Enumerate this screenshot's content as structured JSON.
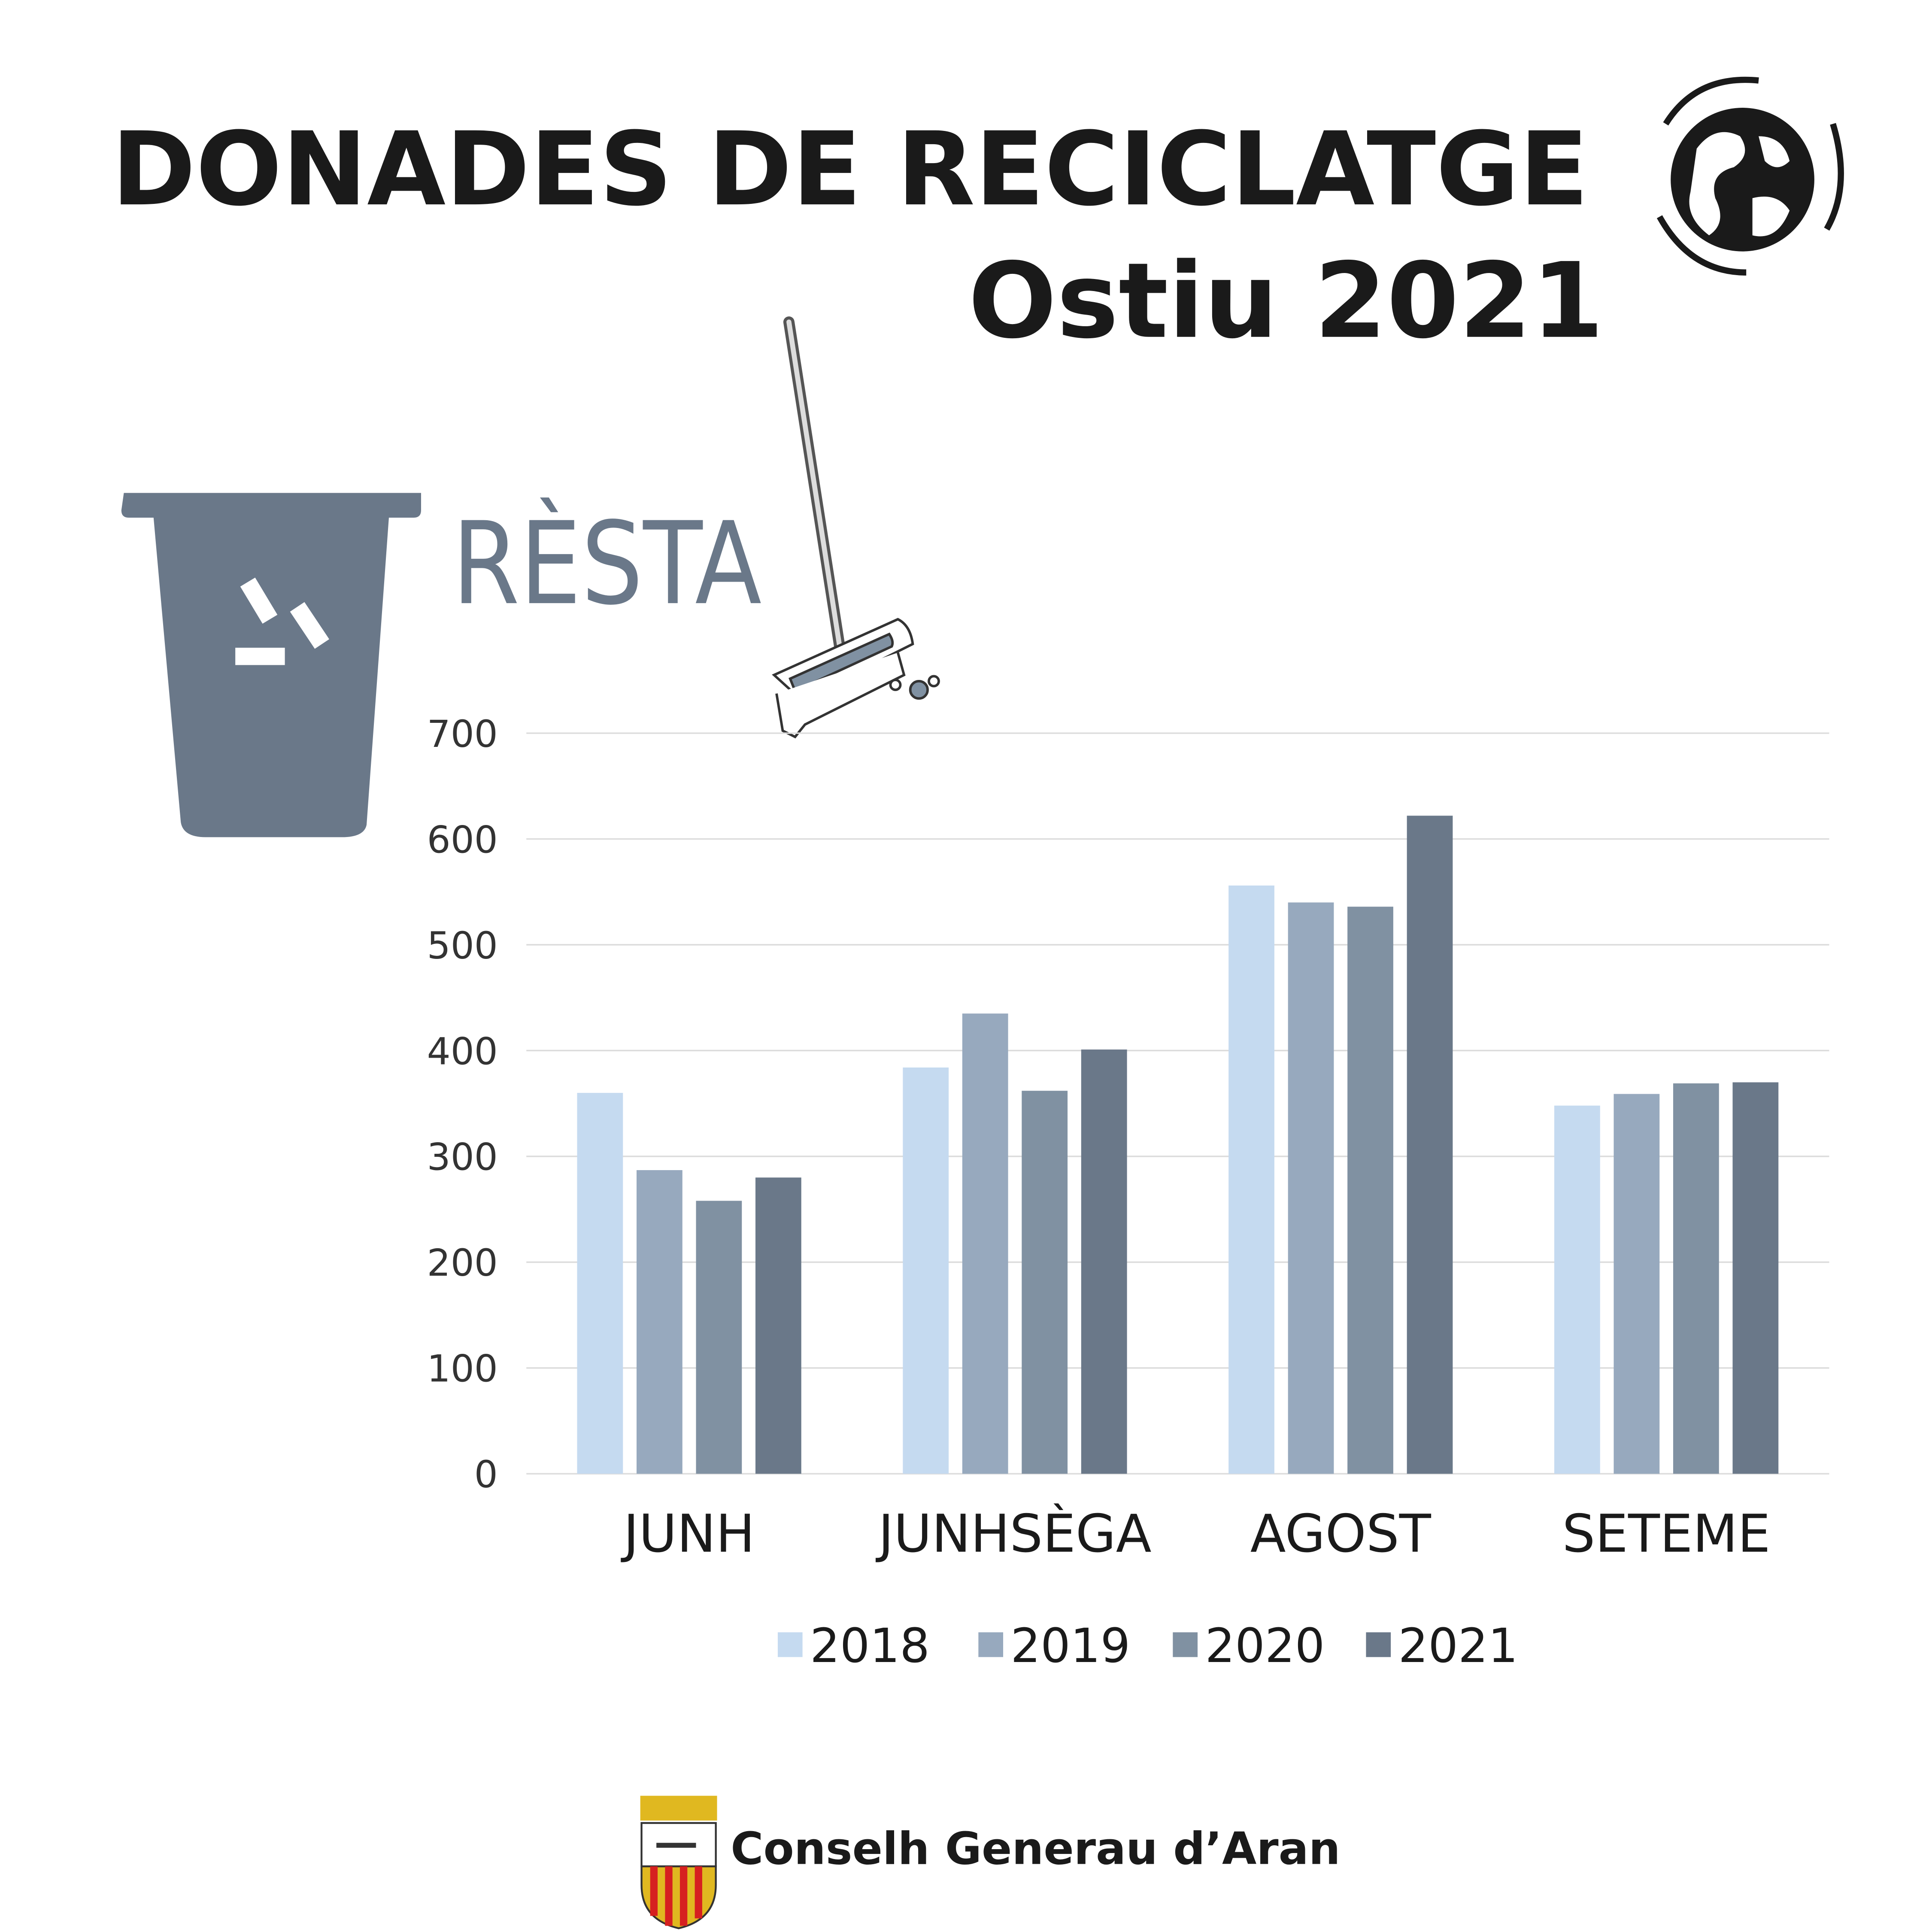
{
  "chart_data": {
    "type": "bar",
    "title": "DONADES DE RECICLATGE",
    "subtitle": "Ostiu 2021",
    "annotations": [
      "RÈSTA",
      "Conselh Generau d’Aran"
    ],
    "categories": [
      "JUNH",
      "JUNHSÈGA",
      "AGOST",
      "SETEME"
    ],
    "series": [
      {
        "name": "2018",
        "color": "#c5daf0",
        "values": [
          360,
          384,
          556,
          348
        ]
      },
      {
        "name": "2019",
        "color": "#97a9be",
        "values": [
          287,
          435,
          540,
          359
        ]
      },
      {
        "name": "2020",
        "color": "#8091a2",
        "values": [
          258,
          362,
          536,
          369
        ]
      },
      {
        "name": "2021",
        "color": "#6a7889",
        "values": [
          280,
          401,
          622,
          370
        ]
      }
    ],
    "ylim": [
      0,
      700
    ],
    "yticks": [
      0,
      100,
      200,
      300,
      400,
      500,
      600,
      700
    ],
    "grid": true,
    "legend": "bottom"
  }
}
